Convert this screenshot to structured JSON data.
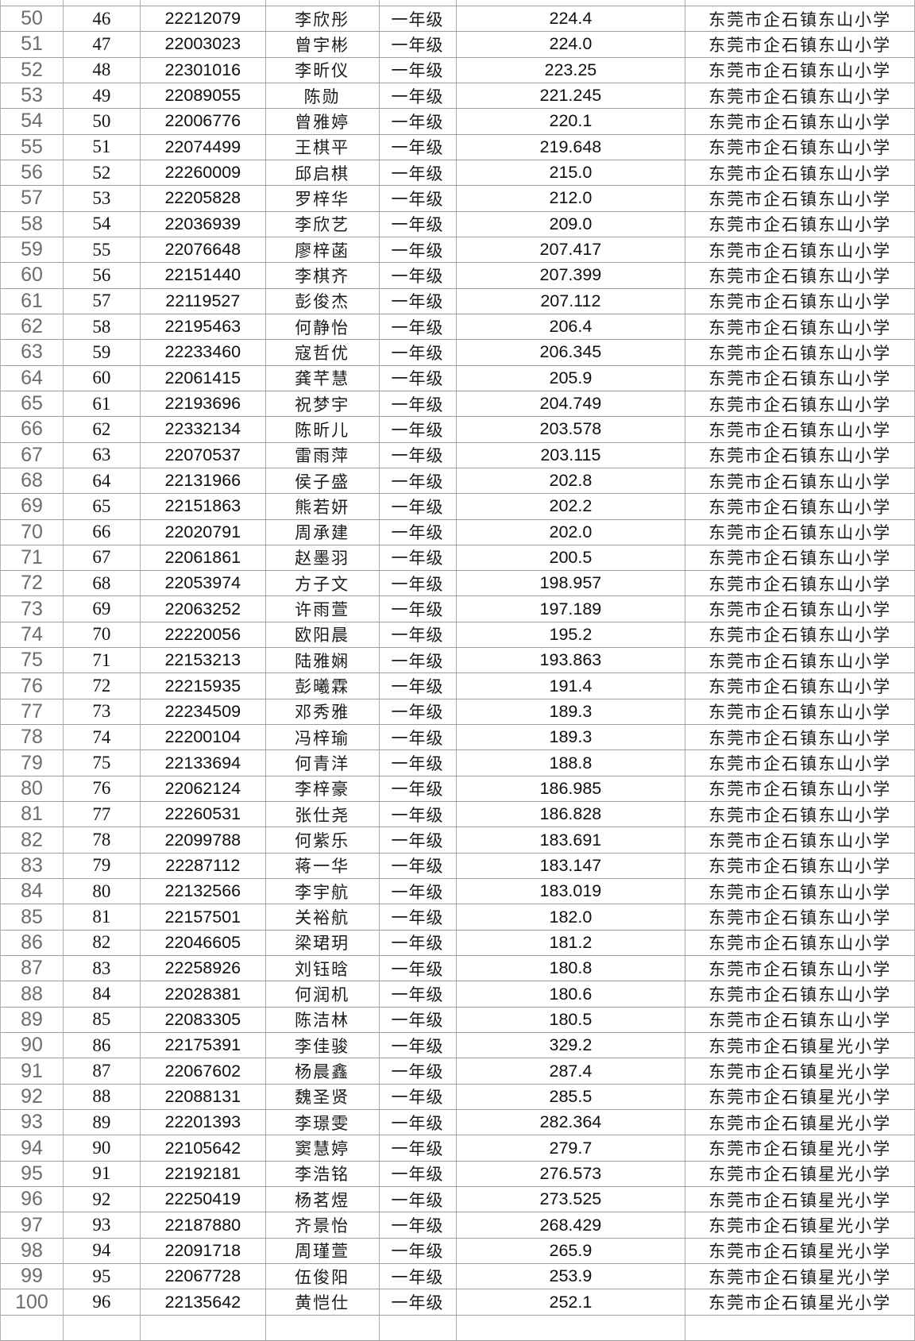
{
  "colors": {
    "border_horizontal": "#9f9f9f",
    "border_vertical": "#ababab",
    "row_number_text": "#6d6d6d",
    "body_text": "#141414",
    "background": "#ffffff"
  },
  "table": {
    "columns": [
      "row_number",
      "rank",
      "student_id",
      "name",
      "grade",
      "score",
      "school"
    ],
    "grade_label": "一年级",
    "school_names": [
      "东莞市企石镇东山小学",
      "东莞市企石镇星光小学"
    ],
    "partial_top_row": [
      "",
      "",
      "",
      "",
      "",
      "",
      ""
    ],
    "partial_bottom_row": [
      "",
      "",
      "",
      "",
      "",
      "",
      ""
    ],
    "rows": [
      [
        "50",
        "46",
        "22212079",
        "李欣彤",
        "一年级",
        "224.4",
        "东莞市企石镇东山小学"
      ],
      [
        "51",
        "47",
        "22003023",
        "曾宇彬",
        "一年级",
        "224.0",
        "东莞市企石镇东山小学"
      ],
      [
        "52",
        "48",
        "22301016",
        "李昕仪",
        "一年级",
        "223.25",
        "东莞市企石镇东山小学"
      ],
      [
        "53",
        "49",
        "22089055",
        "陈勋",
        "一年级",
        "221.245",
        "东莞市企石镇东山小学"
      ],
      [
        "54",
        "50",
        "22006776",
        "曾雅婷",
        "一年级",
        "220.1",
        "东莞市企石镇东山小学"
      ],
      [
        "55",
        "51",
        "22074499",
        "王棋平",
        "一年级",
        "219.648",
        "东莞市企石镇东山小学"
      ],
      [
        "56",
        "52",
        "22260009",
        "邱启棋",
        "一年级",
        "215.0",
        "东莞市企石镇东山小学"
      ],
      [
        "57",
        "53",
        "22205828",
        "罗梓华",
        "一年级",
        "212.0",
        "东莞市企石镇东山小学"
      ],
      [
        "58",
        "54",
        "22036939",
        "李欣艺",
        "一年级",
        "209.0",
        "东莞市企石镇东山小学"
      ],
      [
        "59",
        "55",
        "22076648",
        "廖梓菡",
        "一年级",
        "207.417",
        "东莞市企石镇东山小学"
      ],
      [
        "60",
        "56",
        "22151440",
        "李棋齐",
        "一年级",
        "207.399",
        "东莞市企石镇东山小学"
      ],
      [
        "61",
        "57",
        "22119527",
        "彭俊杰",
        "一年级",
        "207.112",
        "东莞市企石镇东山小学"
      ],
      [
        "62",
        "58",
        "22195463",
        "何静怡",
        "一年级",
        "206.4",
        "东莞市企石镇东山小学"
      ],
      [
        "63",
        "59",
        "22233460",
        "寇哲优",
        "一年级",
        "206.345",
        "东莞市企石镇东山小学"
      ],
      [
        "64",
        "60",
        "22061415",
        "龚芊慧",
        "一年级",
        "205.9",
        "东莞市企石镇东山小学"
      ],
      [
        "65",
        "61",
        "22193696",
        "祝梦宇",
        "一年级",
        "204.749",
        "东莞市企石镇东山小学"
      ],
      [
        "66",
        "62",
        "22332134",
        "陈昕儿",
        "一年级",
        "203.578",
        "东莞市企石镇东山小学"
      ],
      [
        "67",
        "63",
        "22070537",
        "雷雨萍",
        "一年级",
        "203.115",
        "东莞市企石镇东山小学"
      ],
      [
        "68",
        "64",
        "22131966",
        "侯子盛",
        "一年级",
        "202.8",
        "东莞市企石镇东山小学"
      ],
      [
        "69",
        "65",
        "22151863",
        "熊若妍",
        "一年级",
        "202.2",
        "东莞市企石镇东山小学"
      ],
      [
        "70",
        "66",
        "22020791",
        "周承建",
        "一年级",
        "202.0",
        "东莞市企石镇东山小学"
      ],
      [
        "71",
        "67",
        "22061861",
        "赵墨羽",
        "一年级",
        "200.5",
        "东莞市企石镇东山小学"
      ],
      [
        "72",
        "68",
        "22053974",
        "方子文",
        "一年级",
        "198.957",
        "东莞市企石镇东山小学"
      ],
      [
        "73",
        "69",
        "22063252",
        "许雨萱",
        "一年级",
        "197.189",
        "东莞市企石镇东山小学"
      ],
      [
        "74",
        "70",
        "22220056",
        "欧阳晨",
        "一年级",
        "195.2",
        "东莞市企石镇东山小学"
      ],
      [
        "75",
        "71",
        "22153213",
        "陆雅娴",
        "一年级",
        "193.863",
        "东莞市企石镇东山小学"
      ],
      [
        "76",
        "72",
        "22215935",
        "彭曦霖",
        "一年级",
        "191.4",
        "东莞市企石镇东山小学"
      ],
      [
        "77",
        "73",
        "22234509",
        "邓秀雅",
        "一年级",
        "189.3",
        "东莞市企石镇东山小学"
      ],
      [
        "78",
        "74",
        "22200104",
        "冯梓瑜",
        "一年级",
        "189.3",
        "东莞市企石镇东山小学"
      ],
      [
        "79",
        "75",
        "22133694",
        "何青洋",
        "一年级",
        "188.8",
        "东莞市企石镇东山小学"
      ],
      [
        "80",
        "76",
        "22062124",
        "李梓豪",
        "一年级",
        "186.985",
        "东莞市企石镇东山小学"
      ],
      [
        "81",
        "77",
        "22260531",
        "张仕尧",
        "一年级",
        "186.828",
        "东莞市企石镇东山小学"
      ],
      [
        "82",
        "78",
        "22099788",
        "何紫乐",
        "一年级",
        "183.691",
        "东莞市企石镇东山小学"
      ],
      [
        "83",
        "79",
        "22287112",
        "蒋一华",
        "一年级",
        "183.147",
        "东莞市企石镇东山小学"
      ],
      [
        "84",
        "80",
        "22132566",
        "李宇航",
        "一年级",
        "183.019",
        "东莞市企石镇东山小学"
      ],
      [
        "85",
        "81",
        "22157501",
        "关裕航",
        "一年级",
        "182.0",
        "东莞市企石镇东山小学"
      ],
      [
        "86",
        "82",
        "22046605",
        "梁珺玥",
        "一年级",
        "181.2",
        "东莞市企石镇东山小学"
      ],
      [
        "87",
        "83",
        "22258926",
        "刘钰晗",
        "一年级",
        "180.8",
        "东莞市企石镇东山小学"
      ],
      [
        "88",
        "84",
        "22028381",
        "何润机",
        "一年级",
        "180.6",
        "东莞市企石镇东山小学"
      ],
      [
        "89",
        "85",
        "22083305",
        "陈洁林",
        "一年级",
        "180.5",
        "东莞市企石镇东山小学"
      ],
      [
        "90",
        "86",
        "22175391",
        "李佳骏",
        "一年级",
        "329.2",
        "东莞市企石镇星光小学"
      ],
      [
        "91",
        "87",
        "22067602",
        "杨晨鑫",
        "一年级",
        "287.4",
        "东莞市企石镇星光小学"
      ],
      [
        "92",
        "88",
        "22088131",
        "魏圣贤",
        "一年级",
        "285.5",
        "东莞市企石镇星光小学"
      ],
      [
        "93",
        "89",
        "22201393",
        "李璟雯",
        "一年级",
        "282.364",
        "东莞市企石镇星光小学"
      ],
      [
        "94",
        "90",
        "22105642",
        "窦慧婷",
        "一年级",
        "279.7",
        "东莞市企石镇星光小学"
      ],
      [
        "95",
        "91",
        "22192181",
        "李浩铭",
        "一年级",
        "276.573",
        "东莞市企石镇星光小学"
      ],
      [
        "96",
        "92",
        "22250419",
        "杨茗煜",
        "一年级",
        "273.525",
        "东莞市企石镇星光小学"
      ],
      [
        "97",
        "93",
        "22187880",
        "齐景怡",
        "一年级",
        "268.429",
        "东莞市企石镇星光小学"
      ],
      [
        "98",
        "94",
        "22091718",
        "周瑾萱",
        "一年级",
        "265.9",
        "东莞市企石镇星光小学"
      ],
      [
        "99",
        "95",
        "22067728",
        "伍俊阳",
        "一年级",
        "253.9",
        "东莞市企石镇星光小学"
      ],
      [
        "100",
        "96",
        "22135642",
        "黄恺仕",
        "一年级",
        "252.1",
        "东莞市企石镇星光小学"
      ]
    ]
  }
}
